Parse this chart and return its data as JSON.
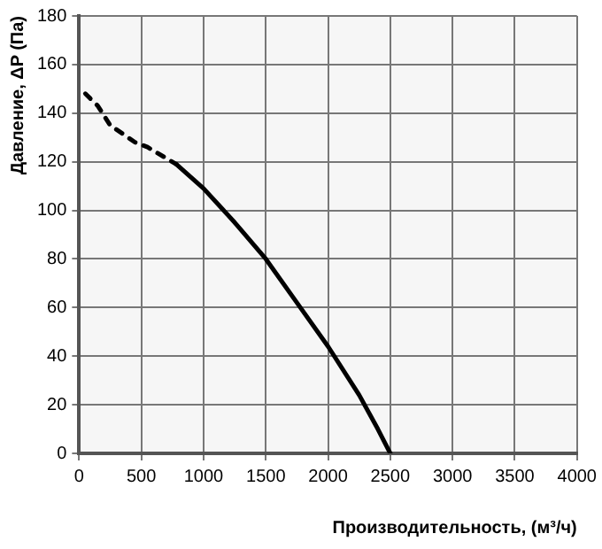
{
  "chart_data": {
    "type": "line",
    "xlabel": "Производительность, (м³/ч)",
    "ylabel": "Давление, ΔP (Па)",
    "xlim": [
      0,
      4000
    ],
    "xticks": [
      0,
      500,
      1000,
      1500,
      2000,
      2500,
      3000,
      3500,
      4000
    ],
    "ylim": [
      0,
      180
    ],
    "yticks": [
      0,
      20,
      40,
      60,
      80,
      100,
      120,
      140,
      160,
      180
    ],
    "grid": true,
    "legend": false,
    "marker": "none",
    "series": [
      {
        "color": "#000000",
        "line_style": "dashed",
        "x": [
          50,
          150,
          250,
          450,
          550,
          780
        ],
        "values": [
          148,
          143,
          135,
          128,
          126,
          119
        ]
      },
      {
        "color": "#000000",
        "line_style": "solid",
        "x": [
          780,
          1000,
          1250,
          1500,
          1750,
          2000,
          2250,
          2400,
          2500
        ],
        "values": [
          119,
          109,
          95,
          80,
          62,
          44,
          24,
          10,
          0
        ]
      }
    ]
  }
}
